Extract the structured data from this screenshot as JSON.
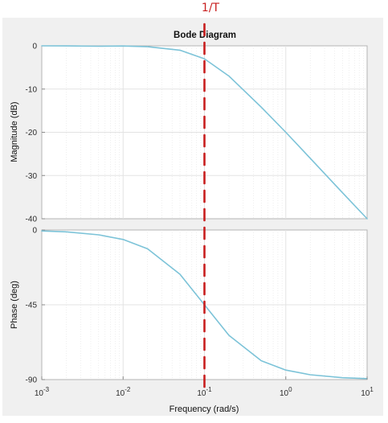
{
  "chart_data": {
    "type": "line",
    "title": "Bode Diagram",
    "xlabel": "Frequency  (rad/s)",
    "x_scale": "log",
    "xlim": [
      0.001,
      10
    ],
    "x_ticks": [
      0.001,
      0.01,
      0.1,
      1,
      10
    ],
    "x_tick_labels": [
      "10^-3",
      "10^-2",
      "10^-1",
      "10^0",
      "10^1"
    ],
    "grid": true,
    "legend": "none",
    "annotation": {
      "text": "1/T",
      "x": 0.1,
      "style": "dashed vertical line",
      "color": "#c81e1e"
    },
    "panels": [
      {
        "id": "magnitude",
        "ylabel": "Magnitude (dB)",
        "ylim": [
          -40,
          0
        ],
        "y_ticks": [
          0,
          -10,
          -20,
          -30,
          -40
        ],
        "y_tick_labels": [
          "0",
          "-10",
          "-20",
          "-30",
          "-40"
        ],
        "series": [
          {
            "color": "#7cc3d8",
            "x": [
              0.001,
              0.002,
              0.005,
              0.01,
              0.02,
              0.05,
              0.1,
              0.2,
              0.5,
              1,
              2,
              5,
              10
            ],
            "y": [
              0,
              -0.02,
              -0.1,
              -0.04,
              -0.2,
              -1,
              -3,
              -7,
              -14.2,
              -20,
              -26,
              -34,
              -40
            ]
          }
        ]
      },
      {
        "id": "phase",
        "ylabel": "Phase (deg)",
        "ylim": [
          -90,
          0
        ],
        "y_ticks": [
          0,
          -45,
          -90
        ],
        "y_tick_labels": [
          "0",
          "-45",
          "-90"
        ],
        "series": [
          {
            "color": "#7cc3d8",
            "x": [
              0.001,
              0.002,
              0.005,
              0.01,
              0.02,
              0.05,
              0.1,
              0.2,
              0.5,
              1,
              2,
              5,
              10
            ],
            "y": [
              -0.6,
              -1.1,
              -2.9,
              -5.7,
              -11.3,
              -26.6,
              -45,
              -63.4,
              -78.7,
              -84.3,
              -87.1,
              -88.9,
              -89.4
            ]
          }
        ]
      }
    ]
  },
  "colors": {
    "page_background": "#ffffff",
    "figure_background": "#f0f0f0",
    "axes_background": "#ffffff",
    "grid": "#e3e3e3",
    "axes_frame": "#b4b4b4",
    "curve": "#7cc3d8",
    "annotation": "#c81e1e"
  }
}
